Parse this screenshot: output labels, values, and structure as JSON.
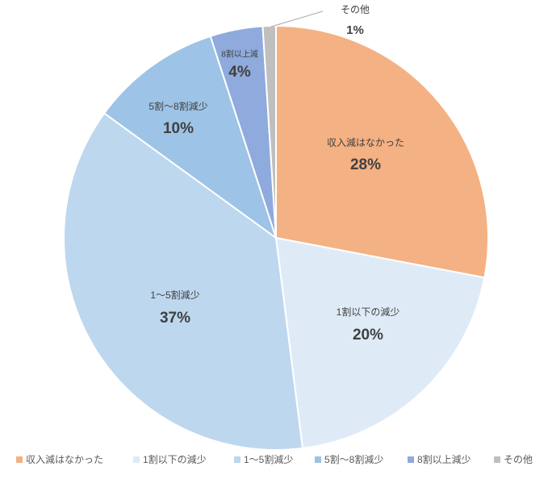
{
  "chart_data": {
    "type": "pie",
    "categories": [
      "収入減はなかった",
      "1割以下の減少",
      "1～5割減少",
      "5割～8割減少",
      "8割以上減",
      "その他"
    ],
    "legend_labels": [
      "収入減はなかった",
      "1割以下の減少",
      "1～5割減少",
      "5割～8割減少",
      "8割以上減少",
      "その他"
    ],
    "values": [
      28,
      20,
      37,
      10,
      4,
      1
    ],
    "value_labels": [
      "28%",
      "20%",
      "37%",
      "10%",
      "4%",
      "1%"
    ],
    "colors": [
      "#f4b183",
      "#deebf7",
      "#bdd7ee",
      "#9dc3e6",
      "#8faadc",
      "#bfbfbf"
    ],
    "legend": "bottom"
  }
}
